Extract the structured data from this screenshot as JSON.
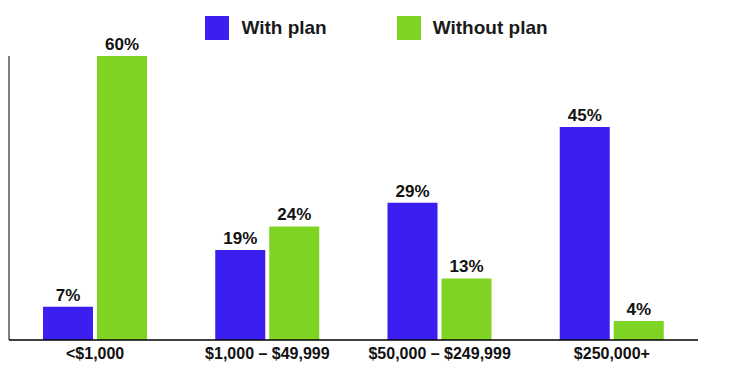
{
  "chart_data": {
    "type": "bar",
    "categories": [
      "<$1,000",
      "$1,000 – $49,999",
      "$50,000 – $249,999",
      "$250,000+"
    ],
    "series": [
      {
        "name": "With plan",
        "color": "#3b1ff0",
        "values": [
          7,
          19,
          29,
          45
        ],
        "value_labels": [
          "7%",
          "19%",
          "29%",
          "45%"
        ]
      },
      {
        "name": "Without plan",
        "color": "#7fd323",
        "values": [
          60,
          24,
          13,
          4
        ],
        "value_labels": [
          "60%",
          "24%",
          "13%",
          "4%"
        ]
      }
    ],
    "ylim": [
      0,
      60
    ],
    "grid": false,
    "legend": "top",
    "data_labels": true,
    "tick_labels": "x"
  }
}
